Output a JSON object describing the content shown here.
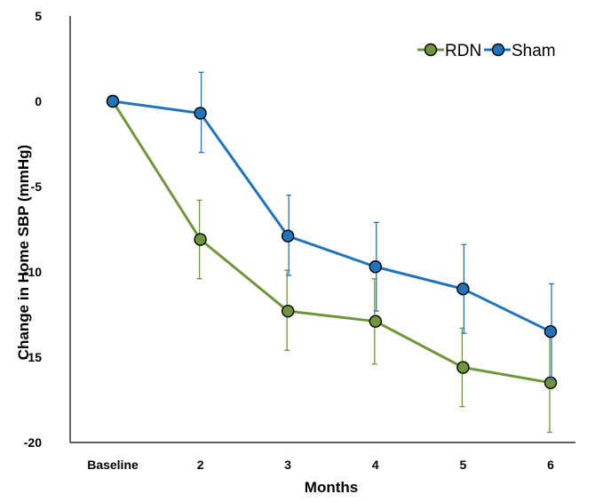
{
  "chart_data": {
    "type": "line",
    "categories": [
      "Baseline",
      "2",
      "3",
      "4",
      "5",
      "6"
    ],
    "xlabel": "Months",
    "ylabel": "Change in Home SBP (mmHg)",
    "ylim": [
      -20,
      5
    ],
    "yticks": [
      5,
      0,
      -5,
      -10,
      -15,
      -20
    ],
    "grid": false,
    "legend": "top-right",
    "series": [
      {
        "name": "RDN",
        "color": "#70963b",
        "values": [
          0,
          -8.1,
          -12.3,
          -12.9,
          -15.6,
          -16.5
        ],
        "error_low": [
          0,
          -10.4,
          -14.6,
          -15.4,
          -17.9,
          -19.4
        ],
        "error_high": [
          0,
          -5.8,
          -9.9,
          -10.4,
          -13.3,
          -13.6
        ]
      },
      {
        "name": "Sham",
        "color": "#2173ba",
        "values": [
          0,
          -0.7,
          -7.9,
          -9.7,
          -11.0,
          -13.5
        ],
        "error_low": [
          0,
          -3.0,
          -10.2,
          -12.3,
          -13.6,
          -16.3
        ],
        "error_high": [
          0,
          1.7,
          -5.5,
          -7.1,
          -8.4,
          -10.7
        ]
      }
    ]
  }
}
